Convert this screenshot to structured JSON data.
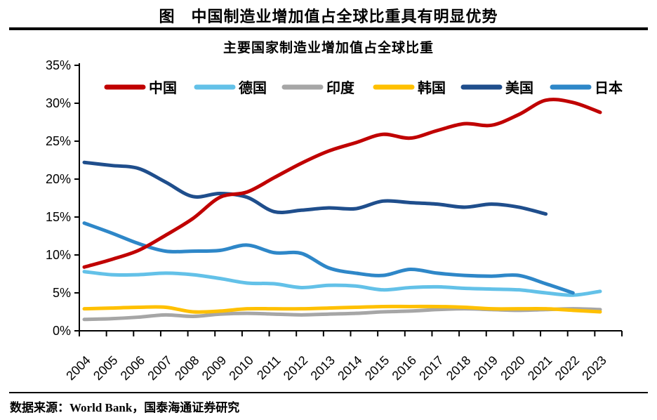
{
  "header": {
    "title": "图　中国制造业增加值占全球比重具有明显优势"
  },
  "footer": {
    "source": "数据来源：World Bank，国泰海通证券研究"
  },
  "chart_data": {
    "type": "line",
    "title": "主要国家制造业增加值占全球比重",
    "categories": [
      "2004",
      "2005",
      "2006",
      "2007",
      "2008",
      "2009",
      "2010",
      "2011",
      "2012",
      "2013",
      "2014",
      "2015",
      "2016",
      "2017",
      "2018",
      "2019",
      "2020",
      "2021",
      "2022",
      "2023"
    ],
    "series": [
      {
        "name": "中国",
        "color": "#C00000",
        "values": [
          8.4,
          9.4,
          10.6,
          12.6,
          14.8,
          17.6,
          18.3,
          20.2,
          22.1,
          23.7,
          24.8,
          25.9,
          25.4,
          26.4,
          27.3,
          27.1,
          28.5,
          30.4,
          30.1,
          28.8
        ]
      },
      {
        "name": "德国",
        "color": "#63C1E8",
        "values": [
          7.8,
          7.4,
          7.4,
          7.6,
          7.4,
          6.9,
          6.3,
          6.2,
          5.7,
          6.0,
          5.9,
          5.4,
          5.7,
          5.8,
          5.6,
          5.5,
          5.4,
          5.0,
          4.7,
          5.2
        ]
      },
      {
        "name": "印度",
        "color": "#A6A6A6",
        "values": [
          1.5,
          1.6,
          1.8,
          2.1,
          1.9,
          2.2,
          2.3,
          2.2,
          2.1,
          2.2,
          2.3,
          2.5,
          2.6,
          2.8,
          2.9,
          2.8,
          2.7,
          2.8,
          2.9,
          2.8
        ]
      },
      {
        "name": "韩国",
        "color": "#FFC000",
        "values": [
          2.9,
          3.0,
          3.1,
          3.1,
          2.5,
          2.6,
          2.9,
          2.9,
          2.9,
          3.0,
          3.1,
          3.2,
          3.2,
          3.2,
          3.1,
          2.9,
          2.9,
          2.9,
          2.7,
          2.5
        ]
      },
      {
        "name": "美国",
        "color": "#1F4E8C",
        "values": [
          22.2,
          21.8,
          21.4,
          19.6,
          17.7,
          18.1,
          17.6,
          15.7,
          15.9,
          16.2,
          16.1,
          17.1,
          16.9,
          16.7,
          16.3,
          16.7,
          16.3,
          15.4
        ]
      },
      {
        "name": "日本",
        "color": "#2E87C8",
        "values": [
          14.2,
          12.9,
          11.5,
          10.5,
          10.5,
          10.6,
          11.3,
          10.3,
          10.2,
          8.3,
          7.6,
          7.3,
          8.1,
          7.6,
          7.3,
          7.2,
          7.3,
          6.2,
          5.0
        ]
      }
    ],
    "xlabel": "",
    "ylabel": "",
    "ylim": [
      0,
      35
    ],
    "ytick_step": 5,
    "ytick_suffix": "%",
    "grid": false,
    "legend_position": "top-inside"
  }
}
